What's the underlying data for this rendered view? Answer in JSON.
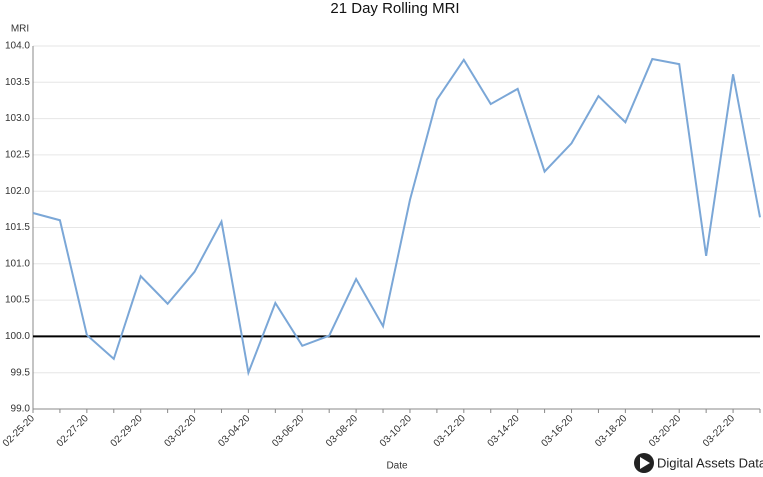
{
  "chart_data": {
    "type": "line",
    "title": "21 Day Rolling MRI",
    "y_label": "MRI",
    "x_label": "Date",
    "categories": [
      "02-25-20",
      null,
      "02-27-20",
      null,
      "02-29-20",
      null,
      "03-02-20",
      null,
      "03-04-20",
      null,
      "03-06-20",
      null,
      "03-08-20",
      null,
      "03-10-20",
      null,
      "03-12-20",
      null,
      "03-14-20",
      null,
      "03-16-20",
      null,
      "03-18-20",
      null,
      "03-20-20",
      null,
      "03-22-20",
      null
    ],
    "series": [
      {
        "name": "MRI",
        "color": "#7ba7d7",
        "values": [
          101.7,
          101.6,
          100.02,
          99.69,
          100.83,
          100.45,
          100.89,
          101.58,
          99.5,
          100.46,
          99.87,
          100.01,
          100.79,
          100.14,
          101.88,
          103.26,
          103.81,
          103.2,
          103.41,
          102.27,
          102.66,
          103.31,
          102.95,
          103.82,
          103.75,
          101.11,
          103.61,
          101.64
        ]
      }
    ],
    "ylim": [
      99,
      104
    ],
    "yticks": [
      {
        "value": 99,
        "label": "99.0"
      },
      99.5,
      {
        "value": 100,
        "label": "100.0"
      },
      100.5,
      {
        "value": 101,
        "label": "101.0"
      },
      101.5,
      {
        "value": 102,
        "label": "102.0"
      },
      102.5,
      {
        "value": 103,
        "label": "103.0"
      },
      103.5,
      {
        "value": 104,
        "label": "104.0"
      }
    ],
    "grid": true,
    "reference_line": {
      "value": 100,
      "color": "#000000"
    },
    "watermark": "Digital Assets Data"
  }
}
